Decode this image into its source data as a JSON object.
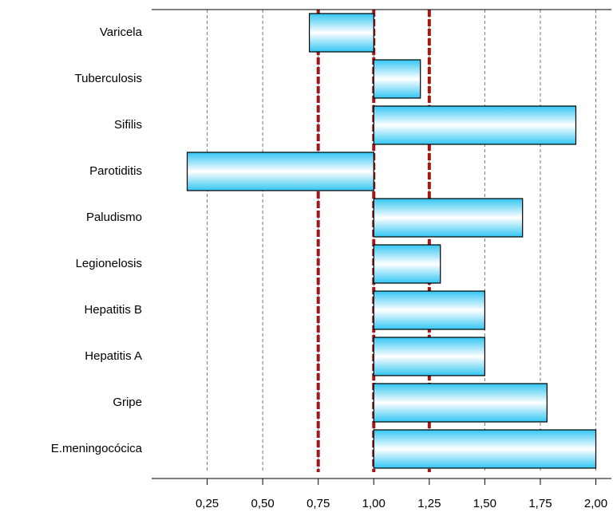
{
  "chart_data": {
    "type": "bar",
    "orientation": "horizontal",
    "categories": [
      "Varicela",
      "Tuberculosis",
      "Sifilis",
      "Parotiditis",
      "Paludismo",
      "Legionelosis",
      "Hepatitis B",
      "Hepatitis A",
      "Gripe",
      "E.meningocócica"
    ],
    "values": [
      0.71,
      1.21,
      1.91,
      0.16,
      1.67,
      1.3,
      1.5,
      1.5,
      1.78,
      2.0
    ],
    "baseline": 1,
    "color": "#33c6f2",
    "xlim": [
      0,
      2.07
    ],
    "xticks": [
      {
        "value": 0.25,
        "label": "0,25"
      },
      {
        "value": 0.5,
        "label": "0,50"
      },
      {
        "value": 0.75,
        "label": "0,75"
      },
      {
        "value": 1,
        "label": "1,00"
      },
      {
        "value": 1.25,
        "label": "1,25"
      },
      {
        "value": 1.5,
        "label": "1,50"
      },
      {
        "value": 1.75,
        "label": "1,75"
      },
      {
        "value": 2,
        "label": "2,00"
      }
    ],
    "grid": true,
    "reference_lines": [
      0.75,
      1,
      1.25
    ],
    "reference_color": "#a01818"
  }
}
